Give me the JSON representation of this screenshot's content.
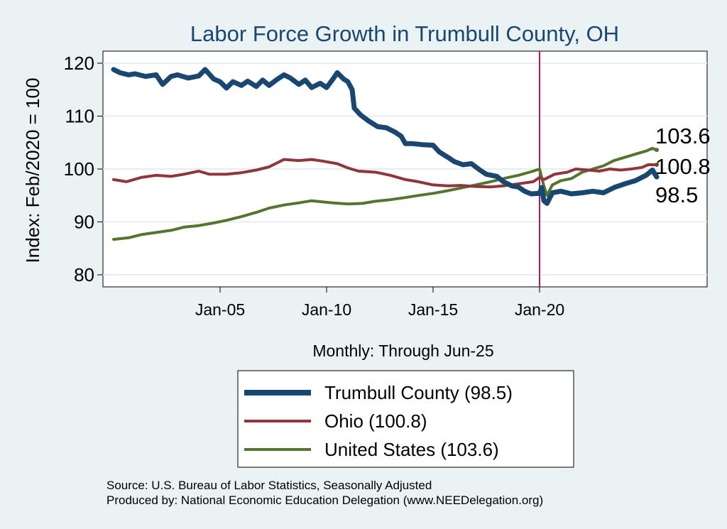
{
  "chart_data": {
    "type": "line",
    "title": "Labor Force Growth in Trumbull  County, OH",
    "ylabel": "Index: Feb/2020 = 100",
    "xlabel": "Monthly: Through Jun-25",
    "ylim": [
      80,
      120
    ],
    "yticks": [
      "80",
      "90",
      "100",
      "110",
      "120"
    ],
    "xticks": [
      {
        "label": "Jan-05",
        "x": 2005.0
      },
      {
        "label": "Jan-10",
        "x": 2010.0
      },
      {
        "label": "Jan-15",
        "x": 2015.0
      },
      {
        "label": "Jan-20",
        "x": 2020.0
      }
    ],
    "xlim": [
      2000.0,
      2025.5
    ],
    "vline": {
      "x": 2020.0,
      "color": "#c0175b"
    },
    "grid": true,
    "series": [
      {
        "name": "Trumbull  County (98.5)",
        "color": "#1a476f",
        "width": 7,
        "end_label": "98.5",
        "points": [
          [
            2000.0,
            118.8
          ],
          [
            2000.3,
            118.2
          ],
          [
            2000.7,
            117.8
          ],
          [
            2001.0,
            118.0
          ],
          [
            2001.5,
            117.5
          ],
          [
            2002.0,
            117.8
          ],
          [
            2002.3,
            116.0
          ],
          [
            2002.7,
            117.5
          ],
          [
            2003.0,
            117.8
          ],
          [
            2003.5,
            117.2
          ],
          [
            2004.0,
            117.6
          ],
          [
            2004.3,
            118.8
          ],
          [
            2004.7,
            117.0
          ],
          [
            2005.0,
            116.5
          ],
          [
            2005.3,
            115.3
          ],
          [
            2005.6,
            116.5
          ],
          [
            2006.0,
            115.8
          ],
          [
            2006.3,
            116.6
          ],
          [
            2006.7,
            115.6
          ],
          [
            2007.0,
            116.8
          ],
          [
            2007.3,
            115.8
          ],
          [
            2007.7,
            117.0
          ],
          [
            2008.0,
            117.8
          ],
          [
            2008.3,
            117.2
          ],
          [
            2008.7,
            116.0
          ],
          [
            2009.0,
            116.8
          ],
          [
            2009.3,
            115.4
          ],
          [
            2009.7,
            116.2
          ],
          [
            2010.0,
            115.4
          ],
          [
            2010.3,
            117.0
          ],
          [
            2010.5,
            118.2
          ],
          [
            2010.8,
            117.0
          ],
          [
            2011.0,
            116.5
          ],
          [
            2011.2,
            115.0
          ],
          [
            2011.3,
            111.5
          ],
          [
            2011.6,
            110.2
          ],
          [
            2012.0,
            109.0
          ],
          [
            2012.4,
            108.0
          ],
          [
            2012.8,
            107.8
          ],
          [
            2013.2,
            107.0
          ],
          [
            2013.5,
            106.2
          ],
          [
            2013.7,
            104.8
          ],
          [
            2014.0,
            104.8
          ],
          [
            2014.5,
            104.6
          ],
          [
            2015.0,
            104.5
          ],
          [
            2015.3,
            103.2
          ],
          [
            2015.7,
            102.2
          ],
          [
            2016.0,
            101.4
          ],
          [
            2016.4,
            100.8
          ],
          [
            2016.8,
            101.0
          ],
          [
            2017.2,
            99.8
          ],
          [
            2017.5,
            99.0
          ],
          [
            2018.0,
            98.6
          ],
          [
            2018.3,
            97.6
          ],
          [
            2018.7,
            96.8
          ],
          [
            2019.0,
            96.6
          ],
          [
            2019.3,
            95.8
          ],
          [
            2019.6,
            95.3
          ],
          [
            2020.0,
            95.4
          ],
          [
            2020.1,
            96.5
          ],
          [
            2020.2,
            94.0
          ],
          [
            2020.35,
            93.5
          ],
          [
            2020.6,
            95.5
          ],
          [
            2021.0,
            95.8
          ],
          [
            2021.5,
            95.3
          ],
          [
            2022.0,
            95.5
          ],
          [
            2022.5,
            95.8
          ],
          [
            2023.0,
            95.5
          ],
          [
            2023.5,
            96.5
          ],
          [
            2024.0,
            97.2
          ],
          [
            2024.5,
            97.8
          ],
          [
            2025.0,
            98.8
          ],
          [
            2025.3,
            99.8
          ],
          [
            2025.5,
            98.5
          ]
        ]
      },
      {
        "name": "Ohio (100.8)",
        "color": "#90353b",
        "width": 4,
        "end_label": "100.8",
        "points": [
          [
            2000.0,
            98.0
          ],
          [
            2000.6,
            97.6
          ],
          [
            2001.3,
            98.4
          ],
          [
            2002.0,
            98.8
          ],
          [
            2002.7,
            98.6
          ],
          [
            2003.3,
            99.0
          ],
          [
            2004.0,
            99.6
          ],
          [
            2004.5,
            99.0
          ],
          [
            2005.3,
            99.0
          ],
          [
            2006.0,
            99.3
          ],
          [
            2006.7,
            99.8
          ],
          [
            2007.3,
            100.4
          ],
          [
            2007.7,
            101.2
          ],
          [
            2008.0,
            101.8
          ],
          [
            2008.7,
            101.6
          ],
          [
            2009.3,
            101.8
          ],
          [
            2009.8,
            101.5
          ],
          [
            2010.5,
            101.0
          ],
          [
            2011.0,
            100.2
          ],
          [
            2011.5,
            99.6
          ],
          [
            2012.3,
            99.4
          ],
          [
            2013.0,
            98.8
          ],
          [
            2013.7,
            98.0
          ],
          [
            2014.3,
            97.6
          ],
          [
            2015.0,
            97.0
          ],
          [
            2015.7,
            96.8
          ],
          [
            2016.3,
            96.9
          ],
          [
            2017.0,
            96.7
          ],
          [
            2017.7,
            96.6
          ],
          [
            2018.3,
            96.8
          ],
          [
            2019.0,
            97.2
          ],
          [
            2019.7,
            97.6
          ],
          [
            2020.0,
            98.4
          ],
          [
            2020.2,
            98.0
          ],
          [
            2020.7,
            99.0
          ],
          [
            2021.3,
            99.4
          ],
          [
            2021.7,
            100.0
          ],
          [
            2022.3,
            99.8
          ],
          [
            2022.8,
            99.6
          ],
          [
            2023.3,
            100.0
          ],
          [
            2023.8,
            99.8
          ],
          [
            2024.3,
            100.0
          ],
          [
            2024.8,
            100.3
          ],
          [
            2025.1,
            100.8
          ],
          [
            2025.5,
            100.8
          ]
        ]
      },
      {
        "name": "United States (103.6)",
        "color": "#55752f",
        "width": 4,
        "end_label": "103.6",
        "points": [
          [
            2000.0,
            86.7
          ],
          [
            2000.7,
            87.0
          ],
          [
            2001.3,
            87.6
          ],
          [
            2002.0,
            88.0
          ],
          [
            2002.7,
            88.4
          ],
          [
            2003.3,
            89.0
          ],
          [
            2004.0,
            89.3
          ],
          [
            2004.7,
            89.8
          ],
          [
            2005.3,
            90.3
          ],
          [
            2006.0,
            91.0
          ],
          [
            2006.7,
            91.8
          ],
          [
            2007.3,
            92.6
          ],
          [
            2008.0,
            93.2
          ],
          [
            2008.7,
            93.6
          ],
          [
            2009.3,
            94.0
          ],
          [
            2009.8,
            93.8
          ],
          [
            2010.3,
            93.6
          ],
          [
            2011.0,
            93.4
          ],
          [
            2011.7,
            93.5
          ],
          [
            2012.3,
            93.9
          ],
          [
            2013.0,
            94.2
          ],
          [
            2013.7,
            94.6
          ],
          [
            2014.3,
            95.0
          ],
          [
            2015.0,
            95.4
          ],
          [
            2015.7,
            95.9
          ],
          [
            2016.3,
            96.4
          ],
          [
            2017.0,
            97.0
          ],
          [
            2017.7,
            97.6
          ],
          [
            2018.3,
            98.2
          ],
          [
            2019.0,
            98.8
          ],
          [
            2019.7,
            99.6
          ],
          [
            2020.0,
            100.0
          ],
          [
            2020.2,
            96.8
          ],
          [
            2020.35,
            95.0
          ],
          [
            2020.6,
            97.0
          ],
          [
            2021.0,
            97.8
          ],
          [
            2021.5,
            98.2
          ],
          [
            2022.0,
            99.4
          ],
          [
            2022.5,
            100.0
          ],
          [
            2023.0,
            100.6
          ],
          [
            2023.5,
            101.6
          ],
          [
            2024.0,
            102.2
          ],
          [
            2024.5,
            102.8
          ],
          [
            2025.0,
            103.4
          ],
          [
            2025.3,
            103.9
          ],
          [
            2025.5,
            103.6
          ]
        ]
      }
    ]
  },
  "notes": {
    "source": "Source: U.S. Bureau of Labor Statistics, Seasonally Adjusted",
    "produced": "Produced by: National Economic Education Delegation (www.NEEDelegation.org)"
  }
}
